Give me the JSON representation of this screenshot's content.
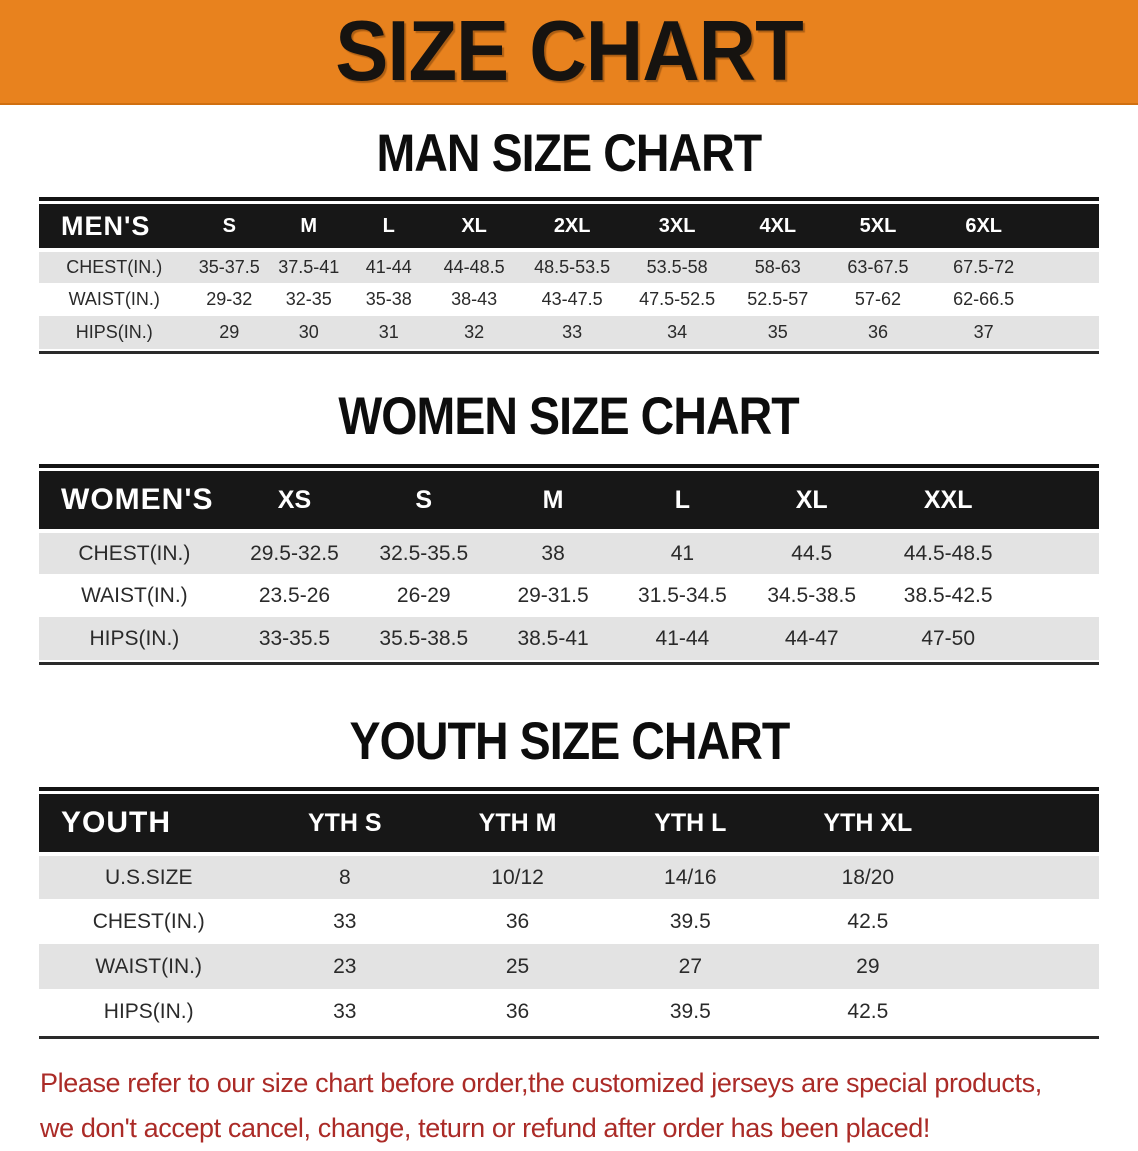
{
  "banner": {
    "title": "SIZE CHART"
  },
  "colors": {
    "banner_bg": "#e8821e",
    "table_header_bg": "#171717",
    "row_alt_gray": "#e3e3e3",
    "disclaimer_text": "#ab2b27"
  },
  "sections": [
    {
      "heading": "MAN SIZE CHART",
      "table": {
        "corner_label": "MEN'S",
        "sizes": [
          "S",
          "M",
          "L",
          "XL",
          "2XL",
          "3XL",
          "4XL",
          "5XL",
          "6XL"
        ],
        "rows": [
          {
            "label": "CHEST(IN.)",
            "values": [
              "35-37.5",
              "37.5-41",
              "41-44",
              "44-48.5",
              "48.5-53.5",
              "53.5-58",
              "58-63",
              "63-67.5",
              "67.5-72"
            ]
          },
          {
            "label": "WAIST(IN.)",
            "values": [
              "29-32",
              "32-35",
              "35-38",
              "38-43",
              "43-47.5",
              "47.5-52.5",
              "52.5-57",
              "57-62",
              "62-66.5"
            ]
          },
          {
            "label": "HIPS(IN.)",
            "values": [
              "29",
              "30",
              "31",
              "32",
              "33",
              "34",
              "35",
              "36",
              "37"
            ]
          }
        ]
      }
    },
    {
      "heading": "WOMEN SIZE CHART",
      "table": {
        "corner_label": "WOMEN'S",
        "sizes": [
          "XS",
          "S",
          "M",
          "L",
          "XL",
          "XXL"
        ],
        "rows": [
          {
            "label": "CHEST(IN.)",
            "values": [
              "29.5-32.5",
              "32.5-35.5",
              "38",
              "41",
              "44.5",
              "44.5-48.5"
            ]
          },
          {
            "label": "WAIST(IN.)",
            "values": [
              "23.5-26",
              "26-29",
              "29-31.5",
              "31.5-34.5",
              "34.5-38.5",
              "38.5-42.5"
            ]
          },
          {
            "label": "HIPS(IN.)",
            "values": [
              "33-35.5",
              "35.5-38.5",
              "38.5-41",
              "41-44",
              "44-47",
              "47-50"
            ]
          }
        ]
      }
    },
    {
      "heading": "YOUTH SIZE CHART",
      "table": {
        "corner_label": "YOUTH",
        "sizes": [
          "YTH S",
          "YTH M",
          "YTH L",
          "YTH XL"
        ],
        "rows": [
          {
            "label": "U.S.SIZE",
            "values": [
              "8",
              "10/12",
              "14/16",
              "18/20"
            ]
          },
          {
            "label": "CHEST(IN.)",
            "values": [
              "33",
              "36",
              "39.5",
              "42.5"
            ]
          },
          {
            "label": "WAIST(IN.)",
            "values": [
              "23",
              "25",
              "27",
              "29"
            ]
          },
          {
            "label": "HIPS(IN.)",
            "values": [
              "33",
              "36",
              "39.5",
              "42.5"
            ]
          }
        ]
      }
    }
  ],
  "footer": {
    "line1": "Please refer to our size chart before order,the customized jerseys are special products,",
    "line2": "we don't accept cancel, change, teturn or refund after order has been placed!"
  }
}
